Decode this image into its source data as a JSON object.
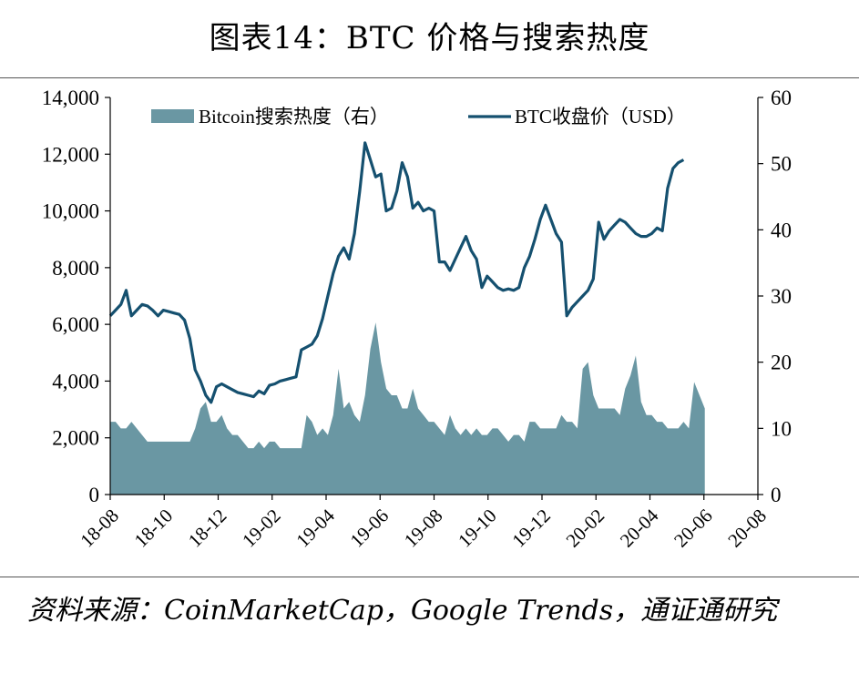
{
  "title": "图表14：BTC 价格与搜索热度",
  "source": "资料来源：CoinMarketCap，Google Trends，通证通研究",
  "chart_data": {
    "type": "area+line",
    "legend": [
      "Bitcoin搜索热度（右）",
      "BTC收盘价（USD）"
    ],
    "y_left": {
      "min": 0,
      "max": 14000,
      "ticks": [
        "0",
        "2,000",
        "4,000",
        "6,000",
        "8,000",
        "10,000",
        "12,000",
        "14,000"
      ]
    },
    "y_right": {
      "min": 0,
      "max": 60,
      "ticks": [
        "0",
        "10",
        "20",
        "30",
        "40",
        "50",
        "60"
      ]
    },
    "x_ticks": [
      "18-08",
      "18-10",
      "18-12",
      "19-02",
      "19-04",
      "19-06",
      "19-08",
      "19-10",
      "19-12",
      "20-02",
      "20-04",
      "20-06",
      "20-08"
    ],
    "x_range_weeks": [
      0,
      122
    ],
    "series": [
      {
        "name": "Bitcoin搜索热度（右）",
        "axis": "right",
        "color": "#6a97a3",
        "points": [
          [
            0,
            11
          ],
          [
            1,
            11
          ],
          [
            2,
            10
          ],
          [
            3,
            10
          ],
          [
            4,
            11
          ],
          [
            5,
            10
          ],
          [
            6,
            9
          ],
          [
            7,
            8
          ],
          [
            8,
            8
          ],
          [
            9,
            8
          ],
          [
            10,
            8
          ],
          [
            11,
            8
          ],
          [
            12,
            8
          ],
          [
            13,
            8
          ],
          [
            14,
            8
          ],
          [
            15,
            8
          ],
          [
            16,
            10
          ],
          [
            17,
            13
          ],
          [
            18,
            14
          ],
          [
            19,
            11
          ],
          [
            20,
            11
          ],
          [
            21,
            12
          ],
          [
            22,
            10
          ],
          [
            23,
            9
          ],
          [
            24,
            9
          ],
          [
            25,
            8
          ],
          [
            26,
            7
          ],
          [
            27,
            7
          ],
          [
            28,
            8
          ],
          [
            29,
            7
          ],
          [
            30,
            8
          ],
          [
            31,
            8
          ],
          [
            32,
            7
          ],
          [
            33,
            7
          ],
          [
            34,
            7
          ],
          [
            35,
            7
          ],
          [
            36,
            7
          ],
          [
            37,
            12
          ],
          [
            38,
            11
          ],
          [
            39,
            9
          ],
          [
            40,
            10
          ],
          [
            41,
            9
          ],
          [
            42,
            12
          ],
          [
            43,
            19
          ],
          [
            44,
            13
          ],
          [
            45,
            14
          ],
          [
            46,
            12
          ],
          [
            47,
            11
          ],
          [
            48,
            15
          ],
          [
            49,
            22
          ],
          [
            50,
            26
          ],
          [
            51,
            20
          ],
          [
            52,
            16
          ],
          [
            53,
            15
          ],
          [
            54,
            15
          ],
          [
            55,
            13
          ],
          [
            56,
            13
          ],
          [
            57,
            16
          ],
          [
            58,
            13
          ],
          [
            59,
            12
          ],
          [
            60,
            11
          ],
          [
            61,
            11
          ],
          [
            62,
            10
          ],
          [
            63,
            9
          ],
          [
            64,
            12
          ],
          [
            65,
            10
          ],
          [
            66,
            9
          ],
          [
            67,
            10
          ],
          [
            68,
            9
          ],
          [
            69,
            10
          ],
          [
            70,
            9
          ],
          [
            71,
            9
          ],
          [
            72,
            10
          ],
          [
            73,
            10
          ],
          [
            74,
            9
          ],
          [
            75,
            8
          ],
          [
            76,
            9
          ],
          [
            77,
            9
          ],
          [
            78,
            8
          ],
          [
            79,
            11
          ],
          [
            80,
            11
          ],
          [
            81,
            10
          ],
          [
            82,
            10
          ],
          [
            83,
            10
          ],
          [
            84,
            10
          ],
          [
            85,
            12
          ],
          [
            86,
            11
          ],
          [
            87,
            11
          ],
          [
            88,
            10
          ],
          [
            89,
            19
          ],
          [
            90,
            20
          ],
          [
            91,
            15
          ],
          [
            92,
            13
          ],
          [
            93,
            13
          ],
          [
            94,
            13
          ],
          [
            95,
            13
          ],
          [
            96,
            12
          ],
          [
            97,
            16
          ],
          [
            98,
            18
          ],
          [
            99,
            21
          ],
          [
            100,
            14
          ],
          [
            101,
            12
          ],
          [
            102,
            12
          ],
          [
            103,
            11
          ],
          [
            104,
            11
          ],
          [
            105,
            10
          ],
          [
            106,
            10
          ],
          [
            107,
            10
          ],
          [
            108,
            11
          ],
          [
            109,
            10
          ],
          [
            110,
            17
          ],
          [
            111,
            15
          ],
          [
            112,
            13
          ]
        ]
      },
      {
        "name": "BTC收盘价（USD）",
        "axis": "left",
        "color": "#15506f",
        "points": [
          [
            0,
            6300
          ],
          [
            1,
            6500
          ],
          [
            2,
            6700
          ],
          [
            3,
            7200
          ],
          [
            4,
            6300
          ],
          [
            5,
            6500
          ],
          [
            6,
            6700
          ],
          [
            7,
            6650
          ],
          [
            8,
            6500
          ],
          [
            9,
            6300
          ],
          [
            10,
            6500
          ],
          [
            11,
            6450
          ],
          [
            12,
            6400
          ],
          [
            13,
            6350
          ],
          [
            14,
            6150
          ],
          [
            15,
            5500
          ],
          [
            16,
            4400
          ],
          [
            17,
            4000
          ],
          [
            18,
            3500
          ],
          [
            19,
            3250
          ],
          [
            20,
            3800
          ],
          [
            21,
            3900
          ],
          [
            22,
            3800
          ],
          [
            23,
            3700
          ],
          [
            24,
            3600
          ],
          [
            25,
            3550
          ],
          [
            26,
            3500
          ],
          [
            27,
            3450
          ],
          [
            28,
            3650
          ],
          [
            29,
            3550
          ],
          [
            30,
            3850
          ],
          [
            31,
            3900
          ],
          [
            32,
            4000
          ],
          [
            33,
            4050
          ],
          [
            34,
            4100
          ],
          [
            35,
            4150
          ],
          [
            36,
            5100
          ],
          [
            37,
            5200
          ],
          [
            38,
            5300
          ],
          [
            39,
            5600
          ],
          [
            40,
            6200
          ],
          [
            41,
            7000
          ],
          [
            42,
            7800
          ],
          [
            43,
            8400
          ],
          [
            44,
            8700
          ],
          [
            45,
            8300
          ],
          [
            46,
            9200
          ],
          [
            47,
            10700
          ],
          [
            48,
            12400
          ],
          [
            49,
            11800
          ],
          [
            50,
            11200
          ],
          [
            51,
            11300
          ],
          [
            52,
            10000
          ],
          [
            53,
            10100
          ],
          [
            54,
            10700
          ],
          [
            55,
            11700
          ],
          [
            56,
            11200
          ],
          [
            57,
            10100
          ],
          [
            58,
            10300
          ],
          [
            59,
            10000
          ],
          [
            60,
            10100
          ],
          [
            61,
            10000
          ],
          [
            62,
            8200
          ],
          [
            63,
            8200
          ],
          [
            64,
            7900
          ],
          [
            65,
            8300
          ],
          [
            66,
            8700
          ],
          [
            67,
            9100
          ],
          [
            68,
            8600
          ],
          [
            69,
            8300
          ],
          [
            70,
            7300
          ],
          [
            71,
            7700
          ],
          [
            72,
            7500
          ],
          [
            73,
            7300
          ],
          [
            74,
            7200
          ],
          [
            75,
            7250
          ],
          [
            76,
            7200
          ],
          [
            77,
            7300
          ],
          [
            78,
            8000
          ],
          [
            79,
            8400
          ],
          [
            80,
            9000
          ],
          [
            81,
            9700
          ],
          [
            82,
            10200
          ],
          [
            83,
            9700
          ],
          [
            84,
            9200
          ],
          [
            85,
            8900
          ],
          [
            86,
            6300
          ],
          [
            87,
            6600
          ],
          [
            88,
            6800
          ],
          [
            89,
            7000
          ],
          [
            90,
            7200
          ],
          [
            91,
            7600
          ],
          [
            92,
            9600
          ],
          [
            93,
            9000
          ],
          [
            94,
            9300
          ],
          [
            95,
            9500
          ],
          [
            96,
            9700
          ],
          [
            97,
            9600
          ],
          [
            98,
            9400
          ],
          [
            99,
            9200
          ],
          [
            100,
            9100
          ],
          [
            101,
            9100
          ],
          [
            102,
            9200
          ],
          [
            103,
            9400
          ],
          [
            104,
            9300
          ],
          [
            105,
            10800
          ],
          [
            106,
            11500
          ],
          [
            107,
            11700
          ],
          [
            108,
            11800
          ]
        ]
      }
    ]
  }
}
